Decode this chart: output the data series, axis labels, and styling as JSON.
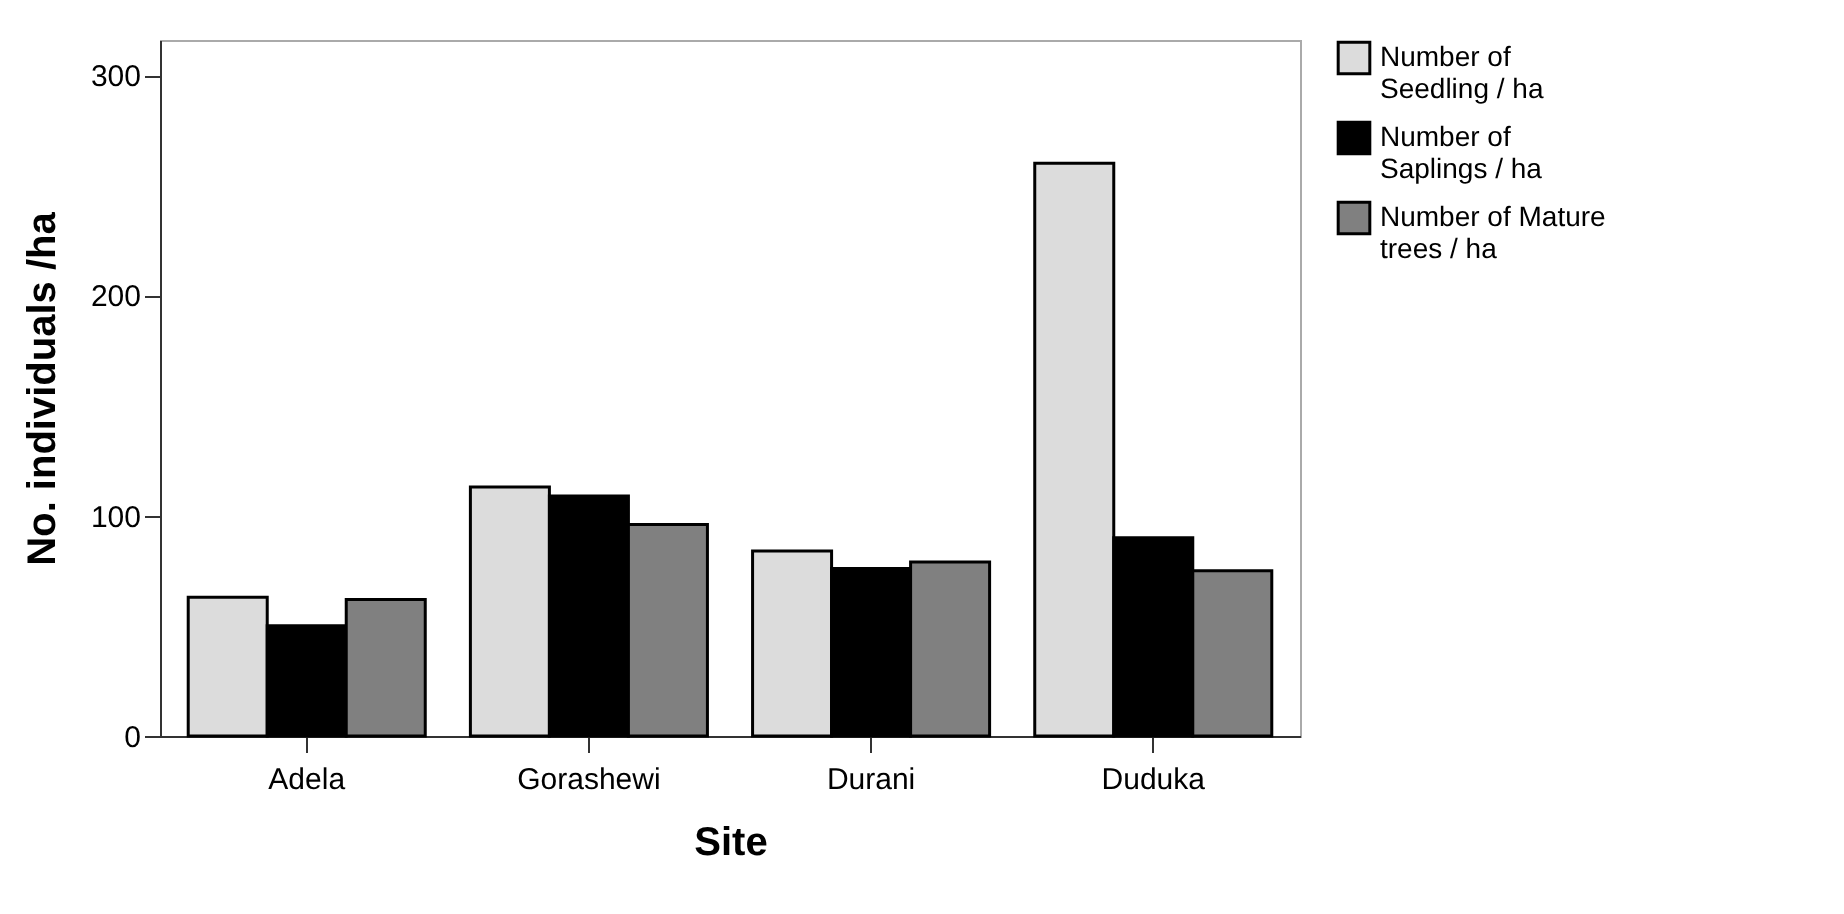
{
  "chart_data": {
    "type": "bar",
    "xlabel": "Site",
    "ylabel": "No. individuals /ha",
    "categories": [
      "Adela",
      "Gorashewi",
      "Durani",
      "Duduka"
    ],
    "series": [
      {
        "name": "Number of Seedling / ha",
        "color": "#dcdcdc",
        "values": [
          63,
          113,
          84,
          260
        ]
      },
      {
        "name": "Number of Saplings / ha",
        "color": "#000000",
        "values": [
          50,
          109,
          76,
          90
        ]
      },
      {
        "name": "Number of Mature trees / ha",
        "color": "#808080",
        "values": [
          62,
          96,
          79,
          75
        ]
      }
    ],
    "ylim": [
      0,
      316
    ],
    "yticks": [
      0,
      100,
      200,
      300
    ],
    "grid": false,
    "legend": "right"
  }
}
